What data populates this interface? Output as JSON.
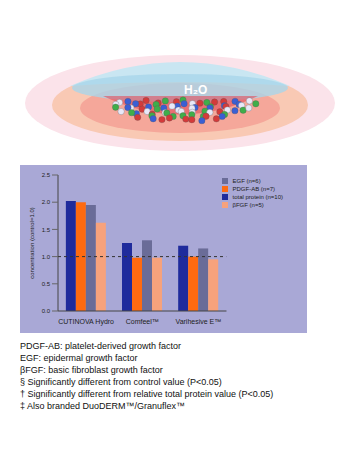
{
  "illustration": {
    "label": "H₂O"
  },
  "chart_data": {
    "type": "bar",
    "categories": [
      "CUTINOVA Hydro",
      "Comfeel™",
      "Varihesive E™"
    ],
    "series": [
      {
        "name": "total protein (n=10)",
        "color": "#1f2b9c",
        "values": [
          2.02,
          1.25,
          1.2
        ]
      },
      {
        "name": "PDGF-AB (n=7)",
        "color": "#ff6a10",
        "values": [
          2.0,
          0.98,
          1.0
        ]
      },
      {
        "name": "EGF (n=6)",
        "color": "#6a6c98",
        "values": [
          1.95,
          1.3,
          1.15
        ]
      },
      {
        "name": "βFGF (n=5)",
        "color": "#f7a27c",
        "values": [
          1.62,
          0.98,
          0.95
        ]
      }
    ],
    "y_label": "concentration (control=1.0)",
    "ylim": [
      0,
      2.5
    ],
    "yticks": [
      {
        "value": 0,
        "label": "0.0"
      },
      0.5,
      {
        "value": 1,
        "label": "1.0"
      },
      1.5,
      {
        "value": 2,
        "label": "2.0"
      },
      2.5
    ],
    "reference_line": 1.0,
    "grid": false,
    "legend": "upper right"
  },
  "footnotes": [
    "PDGF-AB: platelet-derived growth factor",
    "EGF: epidermal growth factor",
    "βFGF: basic fibroblast growth factor",
    "§ Significantly different from control value (P<0.05)",
    "† Significantly different from relative total protein value (P<0.05)",
    "‡ Also branded DuoDERM™/Granuflex™"
  ]
}
